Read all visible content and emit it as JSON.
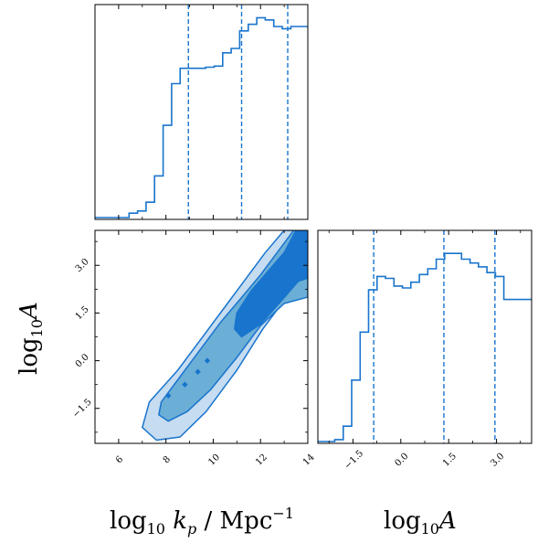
{
  "chart_data": [
    {
      "type": "histogram",
      "panel": "marginal-logkp",
      "xlim": [
        5,
        14
      ],
      "bin_edges": [
        5,
        5.36,
        5.72,
        6.08,
        6.44,
        6.8,
        7.16,
        7.52,
        7.88,
        8.24,
        8.6,
        8.96,
        9.32,
        9.68,
        10.04,
        10.4,
        10.76,
        11.12,
        11.48,
        11.84,
        12.2,
        12.56,
        12.92,
        13.28,
        13.64,
        14
      ],
      "counts": [
        0,
        0,
        0,
        0,
        0.02,
        0.03,
        0.07,
        0.19,
        0.42,
        0.61,
        0.68,
        0.68,
        0.68,
        0.685,
        0.69,
        0.75,
        0.77,
        0.85,
        0.88,
        0.91,
        0.9,
        0.87,
        0.86,
        0.87,
        0.87
      ],
      "quantiles": [
        8.95,
        11.2,
        13.15
      ],
      "color": "#1874cd"
    },
    {
      "type": "contour",
      "panel": "joint-logkp-logA",
      "xlim": [
        5,
        14
      ],
      "ylim": [
        -2.6,
        4.1
      ],
      "xticks": [
        "6",
        "8",
        "10",
        "12",
        "14"
      ],
      "yticks": [
        "−1.5",
        "0.0",
        "1.5",
        "3.0"
      ],
      "xlabel_main": "log",
      "xlabel_sub": "10",
      "xlabel_rest": " k",
      "xlabel_p": "p",
      "xlabel_unit": " / Mpc",
      "xlabel_exp": "−1",
      "ylabel_main": "log",
      "ylabel_sub": "10",
      "ylabel_rest": "A",
      "levels": [
        {
          "color": "#c6dcf0",
          "points": [
            [
              7.6,
              -2.5
            ],
            [
              8.6,
              -2.4
            ],
            [
              9.7,
              -1.6
            ],
            [
              11.0,
              -0.3
            ],
            [
              12.1,
              1.0
            ],
            [
              13.3,
              2.2
            ],
            [
              14.0,
              2.6
            ],
            [
              14.0,
              4.1
            ],
            [
              13.0,
              4.1
            ],
            [
              12.2,
              3.4
            ],
            [
              11.4,
              2.6
            ],
            [
              10.6,
              1.8
            ],
            [
              9.6,
              0.8
            ],
            [
              8.5,
              -0.3
            ],
            [
              7.3,
              -1.3
            ],
            [
              7.0,
              -2.1
            ]
          ]
        },
        {
          "color": "#6baed6",
          "points": [
            [
              8.1,
              -1.9
            ],
            [
              8.9,
              -1.6
            ],
            [
              9.9,
              -0.9
            ],
            [
              11.0,
              0.1
            ],
            [
              12.0,
              1.1
            ],
            [
              13.0,
              1.8
            ],
            [
              14.0,
              2.0
            ],
            [
              14.0,
              4.1
            ],
            [
              13.4,
              4.1
            ],
            [
              12.8,
              3.5
            ],
            [
              12.0,
              2.7
            ],
            [
              11.1,
              1.9
            ],
            [
              10.3,
              1.2
            ],
            [
              9.5,
              0.4
            ],
            [
              8.6,
              -0.5
            ],
            [
              7.8,
              -1.3
            ],
            [
              7.7,
              -1.7
            ]
          ]
        },
        {
          "color": "#1874cd",
          "points": [
            [
              11.2,
              0.75
            ],
            [
              12.0,
              1.15
            ],
            [
              12.9,
              1.9
            ],
            [
              13.6,
              2.5
            ],
            [
              14.0,
              2.6
            ],
            [
              14.0,
              4.1
            ],
            [
              13.5,
              4.1
            ],
            [
              13.0,
              3.4
            ],
            [
              12.3,
              2.8
            ],
            [
              11.6,
              2.2
            ],
            [
              11.0,
              1.5
            ],
            [
              10.9,
              1.0
            ]
          ]
        }
      ],
      "dots": [
        [
          8.1,
          -1.1
        ],
        [
          8.8,
          -0.75
        ],
        [
          9.35,
          -0.35
        ],
        [
          9.75,
          0.0
        ]
      ]
    },
    {
      "type": "histogram",
      "panel": "marginal-logA",
      "xlim": [
        -2.6,
        4.1
      ],
      "xticks": [
        "−1.5",
        "0.0",
        "1.5",
        "3.0"
      ],
      "xlabel_main": "log",
      "xlabel_sub": "10",
      "xlabel_rest": "A",
      "bin_edges": [
        -2.6,
        -2.335,
        -2.07,
        -1.805,
        -1.54,
        -1.275,
        -1.01,
        -0.745,
        -0.48,
        -0.215,
        0.05,
        0.315,
        0.58,
        0.845,
        1.11,
        1.375,
        1.64,
        1.905,
        2.17,
        2.435,
        2.7,
        2.965,
        3.23,
        3.495,
        3.76,
        4.1
      ],
      "counts": [
        0,
        0,
        0.01,
        0.08,
        0.32,
        0.57,
        0.79,
        0.86,
        0.85,
        0.81,
        0.8,
        0.83,
        0.87,
        0.9,
        0.95,
        0.98,
        0.98,
        0.95,
        0.93,
        0.91,
        0.88,
        0.86,
        0.74,
        0.74,
        0.74
      ],
      "quantiles": [
        -0.85,
        1.35,
        2.95
      ],
      "color": "#1874cd"
    }
  ]
}
